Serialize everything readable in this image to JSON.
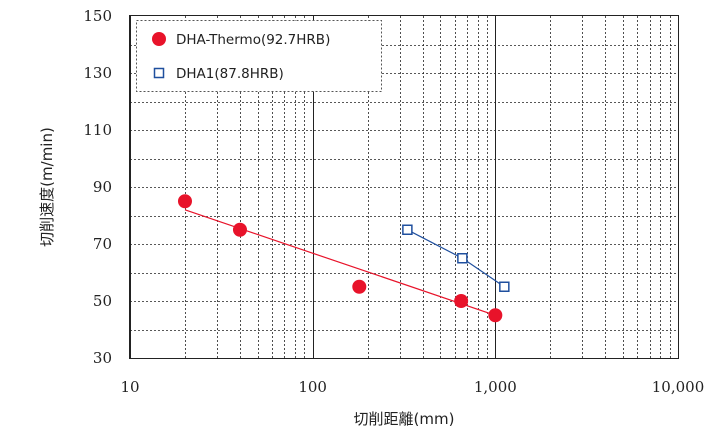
{
  "chart_data": {
    "type": "scatter",
    "xscale": "log",
    "xlim": [
      10,
      10000
    ],
    "ylim": [
      30,
      150
    ],
    "x_ticks": [
      {
        "value": 10,
        "label": "10"
      },
      {
        "value": 100,
        "label": "100"
      },
      {
        "value": 1000,
        "label": "1,000"
      },
      {
        "value": 10000,
        "label": "10,000"
      }
    ],
    "y_ticks": [
      {
        "value": 30,
        "label": "30"
      },
      {
        "value": 50,
        "label": "50"
      },
      {
        "value": 70,
        "label": "70"
      },
      {
        "value": 90,
        "label": "90"
      },
      {
        "value": 110,
        "label": "110"
      },
      {
        "value": 130,
        "label": "130"
      },
      {
        "value": 150,
        "label": "150"
      }
    ],
    "xlabel": "切削距離(mm)",
    "ylabel": "切削速度(m/min)",
    "grid": true,
    "legend_position": "top-left",
    "series": [
      {
        "name": "DHA-Thermo(92.7HRB)",
        "marker": "filled-circle",
        "color": "#e8132a",
        "x": [
          20,
          40,
          180,
          650,
          1000
        ],
        "y": [
          85,
          75,
          55,
          50,
          45
        ],
        "trend": {
          "x": [
            20,
            1000
          ],
          "y": [
            82,
            45
          ]
        }
      },
      {
        "name": "DHA1(87.8HRB)",
        "marker": "open-square",
        "color": "#1f4f9e",
        "x": [
          330,
          660,
          1120
        ],
        "y": [
          75,
          65,
          55
        ],
        "trend": {
          "x": [
            330,
            660,
            1120
          ],
          "y": [
            75,
            65,
            55
          ]
        }
      }
    ]
  }
}
